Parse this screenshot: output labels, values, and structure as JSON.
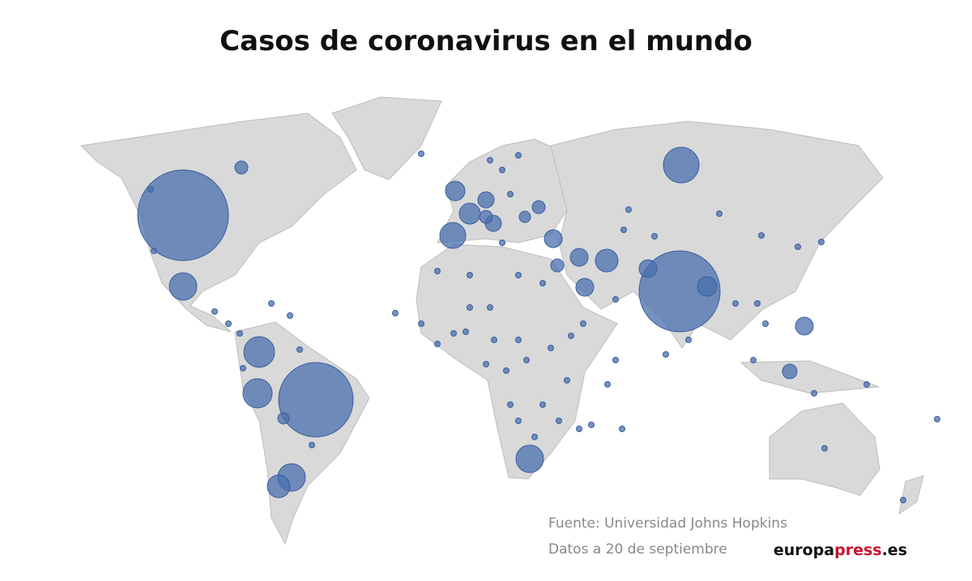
{
  "title": "Casos de coronavirus en el mundo",
  "source": "Fuente: Universidad Johns Hopkins",
  "date_note": "Datos a 20 de septiembre",
  "logo": {
    "first": "europa",
    "middle": "press",
    "last": ".es"
  }
}
